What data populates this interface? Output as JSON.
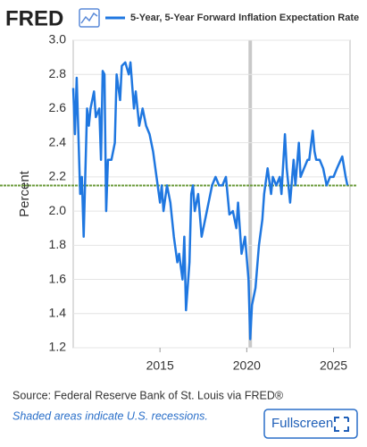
{
  "logo": "FRED",
  "chart_data": {
    "type": "line",
    "y_label": "Percent",
    "x": [
      2010.0,
      2010.1,
      2010.2,
      2010.4,
      2010.5,
      2010.6,
      2010.8,
      2010.9,
      2011.0,
      2011.2,
      2011.3,
      2011.5,
      2011.6,
      2011.7,
      2011.8,
      2011.9,
      2012.0,
      2012.2,
      2012.4,
      2012.5,
      2012.7,
      2012.8,
      2013.0,
      2013.2,
      2013.3,
      2013.5,
      2013.6,
      2013.8,
      2014.0,
      2014.2,
      2014.4,
      2014.6,
      2014.8,
      2015.0,
      2015.1,
      2015.2,
      2015.4,
      2015.6,
      2015.8,
      2016.0,
      2016.1,
      2016.3,
      2016.4,
      2016.5,
      2016.7,
      2016.8,
      2016.9,
      2017.0,
      2017.2,
      2017.4,
      2017.6,
      2017.8,
      2018.0,
      2018.2,
      2018.4,
      2018.6,
      2018.8,
      2019.0,
      2019.2,
      2019.4,
      2019.5,
      2019.7,
      2019.9,
      2020.1,
      2020.2,
      2020.3,
      2020.5,
      2020.7,
      2020.9,
      2021.0,
      2021.2,
      2021.4,
      2021.5,
      2021.7,
      2021.9,
      2022.0,
      2022.2,
      2022.3,
      2022.5,
      2022.7,
      2022.8,
      2023.0,
      2023.1,
      2023.3,
      2023.5,
      2023.6,
      2023.8,
      2023.9,
      2024.0,
      2024.2,
      2024.4,
      2024.6,
      2024.8,
      2025.0,
      2025.2,
      2025.5,
      2025.7,
      2025.8
    ],
    "series": [
      {
        "name": "5-Year, 5-Year Forward Inflation Expectation Rate",
        "color": "#1f77e0",
        "values": [
          2.72,
          2.45,
          2.78,
          2.1,
          2.2,
          1.85,
          2.6,
          2.5,
          2.6,
          2.7,
          2.55,
          2.6,
          2.3,
          2.82,
          2.8,
          2.0,
          2.3,
          2.3,
          2.4,
          2.8,
          2.65,
          2.85,
          2.87,
          2.8,
          2.87,
          2.6,
          2.7,
          2.5,
          2.6,
          2.5,
          2.45,
          2.35,
          2.2,
          2.05,
          2.15,
          2.0,
          2.15,
          2.05,
          1.85,
          1.7,
          1.75,
          1.6,
          1.85,
          1.42,
          1.7,
          2.1,
          2.15,
          2.0,
          2.1,
          1.85,
          1.95,
          2.05,
          2.15,
          2.2,
          2.15,
          2.15,
          2.2,
          1.98,
          2.0,
          1.9,
          2.05,
          1.75,
          1.85,
          1.6,
          1.25,
          1.45,
          1.55,
          1.8,
          1.95,
          2.1,
          2.25,
          2.1,
          2.2,
          2.15,
          2.2,
          2.1,
          2.45,
          2.25,
          2.05,
          2.3,
          2.15,
          2.4,
          2.2,
          2.25,
          2.3,
          2.3,
          2.47,
          2.35,
          2.3,
          2.3,
          2.25,
          2.15,
          2.2,
          2.2,
          2.25,
          2.32,
          2.2,
          2.15
        ]
      }
    ],
    "xlim": [
      2010,
      2025.95
    ],
    "ylim": [
      1.2,
      3.0
    ],
    "xticks": [
      2015,
      2020,
      2025
    ],
    "yticks": [
      1.2,
      1.4,
      1.6,
      1.8,
      {
        "value": 2,
        "label": "2.0"
      },
      2.2,
      2.4,
      2.6,
      2.8,
      {
        "value": 3,
        "label": "3.0"
      }
    ],
    "grid": true,
    "recessions": [
      [
        2020.1,
        2020.3
      ]
    ],
    "reference_line": {
      "value": 2.15,
      "color": "#6a9a3a"
    },
    "source": "Source: Federal Reserve Bank of St. Louis via FRED®",
    "note": "Shaded areas indicate U.S. recessions.",
    "button": "Fullscreen"
  }
}
